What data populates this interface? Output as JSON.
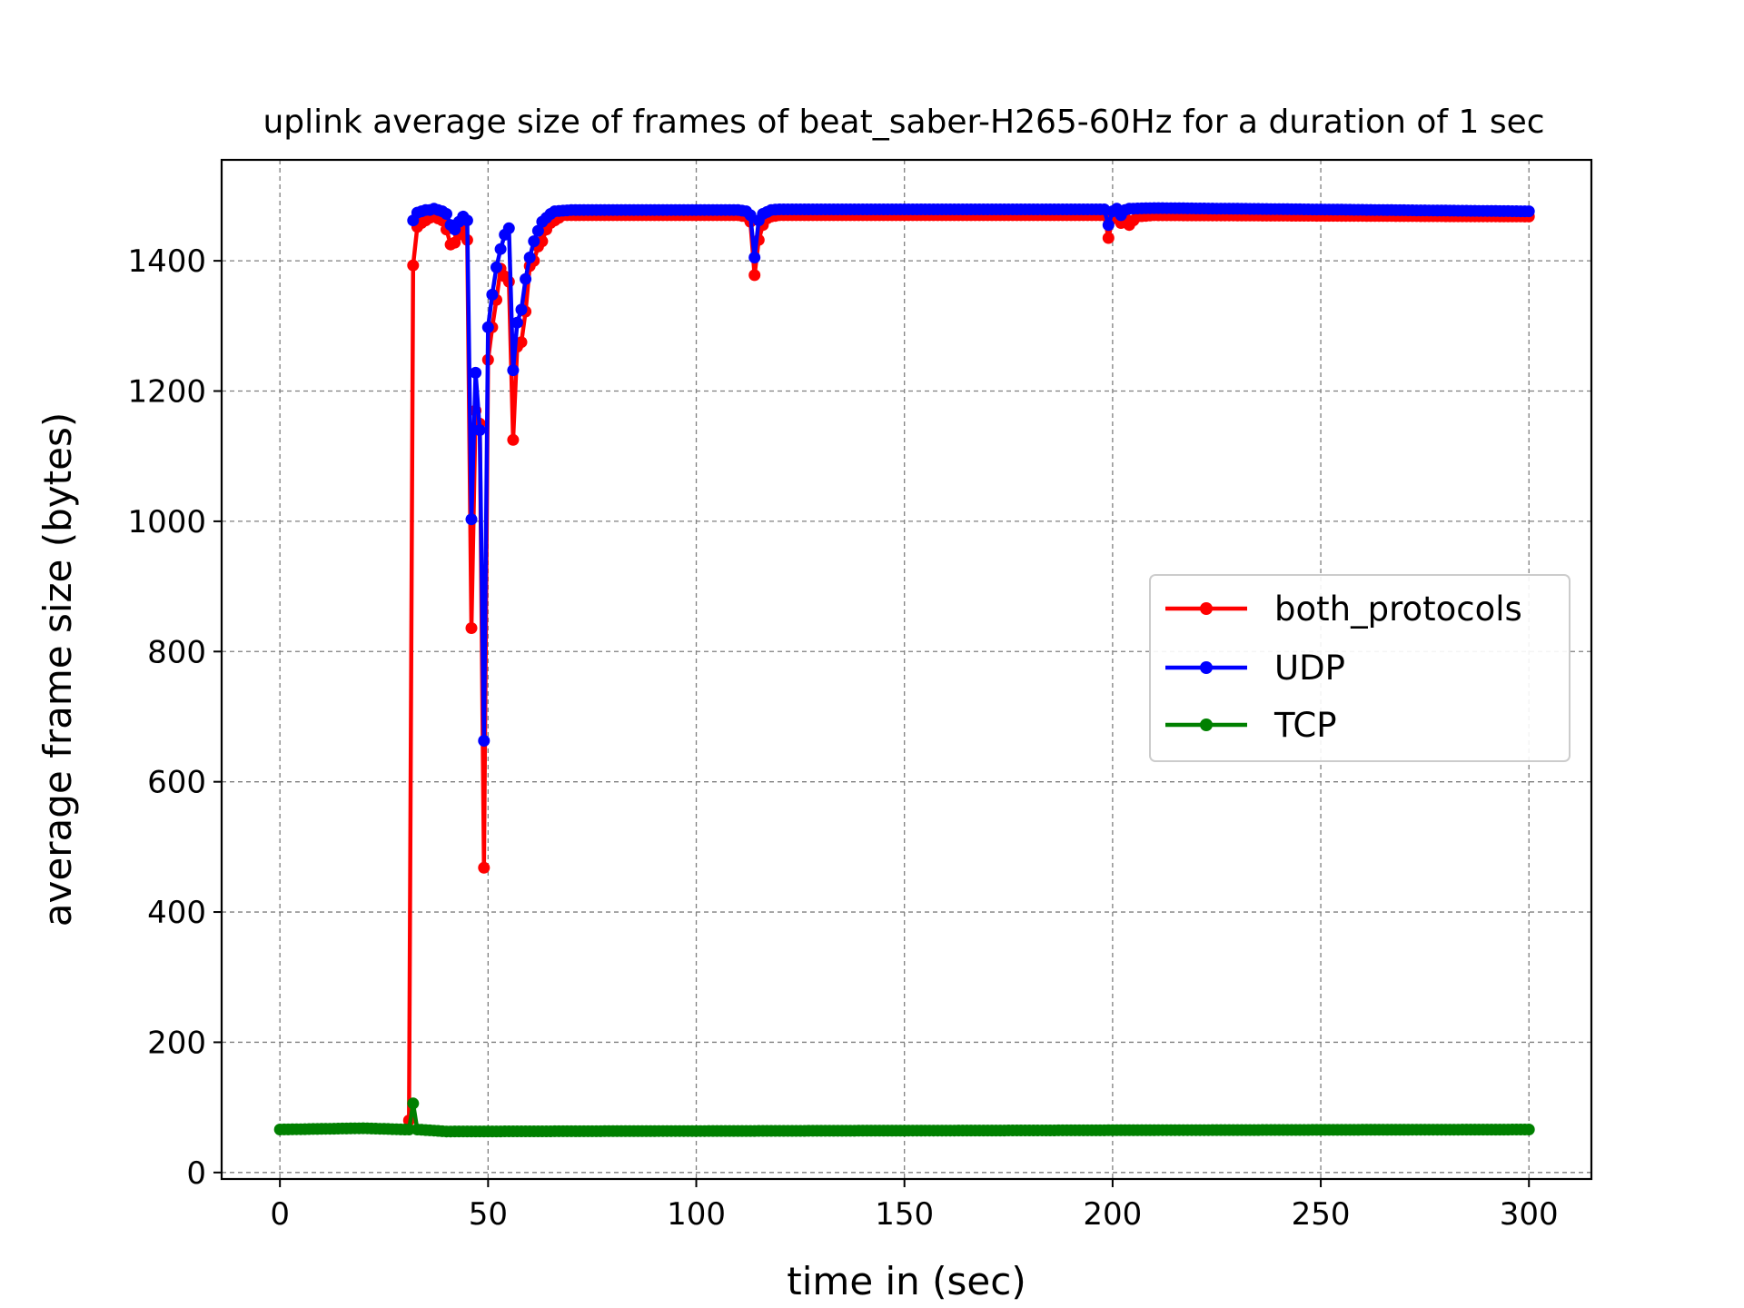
{
  "chart_data": {
    "type": "line",
    "title": "uplink average size of frames of beat_saber-H265-60Hz for a duration of 1 sec",
    "xlabel": "time in (sec)",
    "ylabel": "average frame size (bytes)",
    "xlim": [
      -14,
      315
    ],
    "ylim": [
      -10,
      1555
    ],
    "xticks": [
      0,
      50,
      100,
      150,
      200,
      250,
      300
    ],
    "yticks": [
      0,
      200,
      400,
      600,
      800,
      1000,
      1200,
      1400
    ],
    "grid": true,
    "legend_position": "center-right",
    "series": [
      {
        "name": "both_protocols",
        "color": "#ff0000",
        "keypoints": [
          [
            31,
            80
          ],
          [
            32,
            1393
          ],
          [
            33,
            1452
          ],
          [
            34,
            1458
          ],
          [
            35,
            1462
          ],
          [
            36,
            1466
          ],
          [
            37,
            1468
          ],
          [
            38,
            1465
          ],
          [
            39,
            1462
          ],
          [
            40,
            1448
          ],
          [
            41,
            1425
          ],
          [
            42,
            1428
          ],
          [
            43,
            1440
          ],
          [
            44,
            1450
          ],
          [
            45,
            1432
          ],
          [
            46,
            836
          ],
          [
            47,
            1170
          ],
          [
            48,
            1150
          ],
          [
            49,
            468
          ],
          [
            50,
            1248
          ],
          [
            51,
            1298
          ],
          [
            52,
            1340
          ],
          [
            53,
            1388
          ],
          [
            54,
            1376
          ],
          [
            55,
            1368
          ],
          [
            56,
            1125
          ],
          [
            57,
            1268
          ],
          [
            58,
            1275
          ],
          [
            59,
            1322
          ],
          [
            60,
            1392
          ],
          [
            61,
            1400
          ],
          [
            62,
            1422
          ],
          [
            63,
            1430
          ],
          [
            64,
            1448
          ],
          [
            65,
            1458
          ],
          [
            66,
            1462
          ],
          [
            67,
            1466
          ],
          [
            68,
            1470
          ],
          [
            70,
            1470
          ],
          [
            110,
            1470
          ],
          [
            112,
            1468
          ],
          [
            113,
            1460
          ],
          [
            114,
            1378
          ],
          [
            115,
            1432
          ],
          [
            116,
            1455
          ],
          [
            117,
            1465
          ],
          [
            118,
            1468
          ],
          [
            120,
            1470
          ],
          [
            198,
            1470
          ],
          [
            199,
            1435
          ],
          [
            200,
            1465
          ],
          [
            201,
            1470
          ],
          [
            202,
            1458
          ],
          [
            203,
            1466
          ],
          [
            204,
            1455
          ],
          [
            205,
            1462
          ],
          [
            206,
            1468
          ],
          [
            210,
            1470
          ],
          [
            300,
            1468
          ]
        ]
      },
      {
        "name": "UDP",
        "color": "#0000ff",
        "keypoints": [
          [
            32,
            1462
          ],
          [
            33,
            1474
          ],
          [
            34,
            1476
          ],
          [
            35,
            1478
          ],
          [
            36,
            1478
          ],
          [
            37,
            1480
          ],
          [
            38,
            1478
          ],
          [
            39,
            1476
          ],
          [
            40,
            1472
          ],
          [
            41,
            1455
          ],
          [
            42,
            1448
          ],
          [
            43,
            1460
          ],
          [
            44,
            1468
          ],
          [
            45,
            1462
          ],
          [
            46,
            1003
          ],
          [
            47,
            1228
          ],
          [
            48,
            1140
          ],
          [
            49,
            663
          ],
          [
            50,
            1298
          ],
          [
            51,
            1348
          ],
          [
            52,
            1390
          ],
          [
            53,
            1418
          ],
          [
            54,
            1440
          ],
          [
            55,
            1450
          ],
          [
            56,
            1232
          ],
          [
            57,
            1305
          ],
          [
            58,
            1325
          ],
          [
            59,
            1372
          ],
          [
            60,
            1405
          ],
          [
            61,
            1430
          ],
          [
            62,
            1446
          ],
          [
            63,
            1460
          ],
          [
            64,
            1466
          ],
          [
            65,
            1472
          ],
          [
            66,
            1476
          ],
          [
            70,
            1478
          ],
          [
            110,
            1478
          ],
          [
            112,
            1476
          ],
          [
            113,
            1470
          ],
          [
            114,
            1405
          ],
          [
            115,
            1462
          ],
          [
            116,
            1472
          ],
          [
            118,
            1478
          ],
          [
            120,
            1479
          ],
          [
            198,
            1479
          ],
          [
            199,
            1455
          ],
          [
            200,
            1476
          ],
          [
            201,
            1480
          ],
          [
            202,
            1470
          ],
          [
            203,
            1478
          ],
          [
            204,
            1480
          ],
          [
            210,
            1481
          ],
          [
            300,
            1476
          ]
        ]
      },
      {
        "name": "TCP",
        "color": "#008000",
        "keypoints": [
          [
            0,
            66
          ],
          [
            20,
            68
          ],
          [
            30,
            66
          ],
          [
            31,
            66
          ],
          [
            32,
            106
          ],
          [
            33,
            66
          ],
          [
            40,
            63
          ],
          [
            300,
            66
          ]
        ]
      }
    ]
  }
}
